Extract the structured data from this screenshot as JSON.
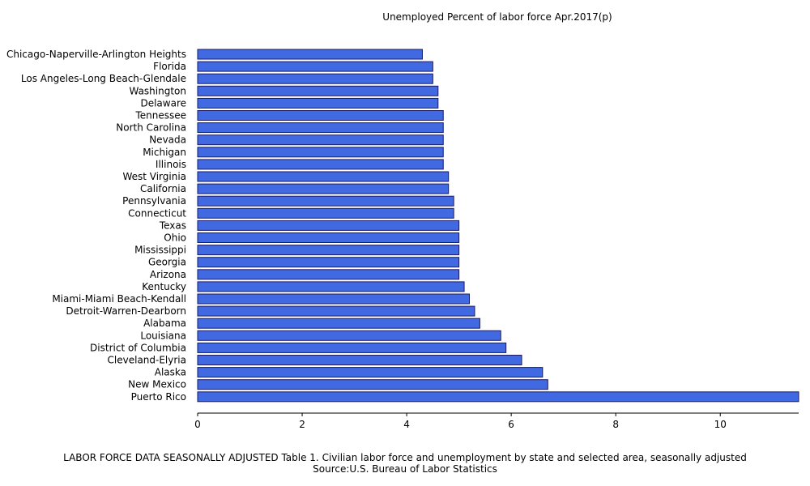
{
  "chart_data": {
    "type": "bar",
    "orientation": "horizontal",
    "title": "Unemployed Percent of labor force Apr.2017(p)",
    "categories": [
      "Chicago-Naperville-Arlington Heights",
      "Florida",
      "Los Angeles-Long Beach-Glendale",
      "Washington",
      "Delaware",
      "Tennessee",
      "North Carolina",
      "Nevada",
      "Michigan",
      "Illinois",
      "West Virginia",
      "California",
      "Pennsylvania",
      "Connecticut",
      "Texas",
      "Ohio",
      "Mississippi",
      "Georgia",
      "Arizona",
      "Kentucky",
      "Miami-Miami Beach-Kendall",
      "Detroit-Warren-Dearborn",
      "Alabama",
      "Louisiana",
      "District of Columbia",
      "Cleveland-Elyria",
      "Alaska",
      "New Mexico",
      "Puerto Rico"
    ],
    "values": [
      4.3,
      4.5,
      4.5,
      4.6,
      4.6,
      4.7,
      4.7,
      4.7,
      4.7,
      4.7,
      4.8,
      4.8,
      4.9,
      4.9,
      5.0,
      5.0,
      5.0,
      5.0,
      5.0,
      5.1,
      5.2,
      5.3,
      5.4,
      5.8,
      5.9,
      6.2,
      6.6,
      6.7,
      11.5
    ],
    "xticks": [
      0,
      2,
      4,
      6,
      8,
      10
    ],
    "xlim": [
      0,
      11.5
    ],
    "grid": false,
    "bar_color": "#4169E1",
    "bar_stroke": "#1a1a66"
  },
  "footer": {
    "line1": "LABOR FORCE DATA SEASONALLY ADJUSTED Table 1. Civilian labor force and unemployment by state and selected area, seasonally adjusted",
    "line2": "Source:U.S. Bureau of Labor Statistics"
  }
}
